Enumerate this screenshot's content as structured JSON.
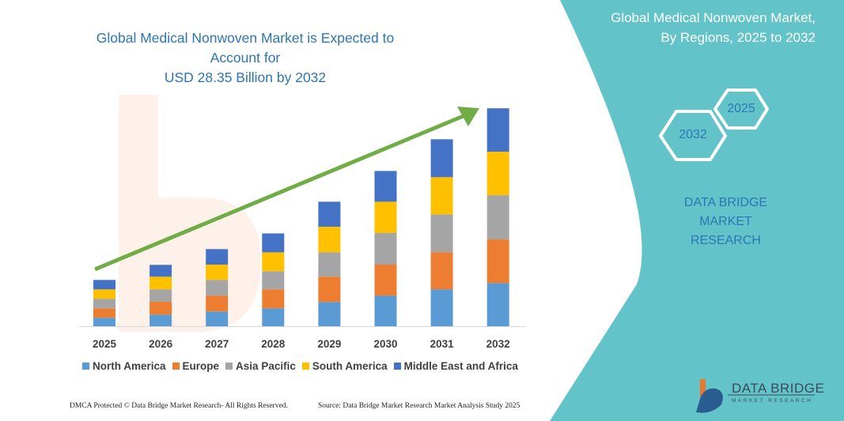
{
  "header": {
    "title_line1": "Global Medical Nonwoven Market is Expected to Account for",
    "title_line2": "USD 28.35 Billion by 2032"
  },
  "side_panel": {
    "title_line1": "Global Medical Nonwoven Market,",
    "title_line2": "By Regions, 2025 to 2032",
    "hex_start": "2025",
    "hex_end": "2032",
    "brand_line1": "DATA BRIDGE MARKET",
    "brand_line2": "RESEARCH",
    "panel_color": "#62c4c9"
  },
  "footer": {
    "left": "DMCA Protected © Data Bridge Market Research- All Rights Reserved.",
    "right": "Source: Data Bridge Market Research  Market Analysis Study 2025"
  },
  "logo": {
    "name": "DATA BRIDGE",
    "sub": "MARKET RESEARCH"
  },
  "chart_data": {
    "type": "bar",
    "stacked": true,
    "title": "Global Medical Nonwoven Market is Expected to Account for USD 28.35 Billion by 2032",
    "xlabel": "",
    "ylabel": "",
    "ylim": [
      0,
      28.35
    ],
    "grid": false,
    "y_axis_shown": false,
    "legend_position": "bottom",
    "trend_arrow": true,
    "categories": [
      "2025",
      "2026",
      "2027",
      "2028",
      "2029",
      "2030",
      "2031",
      "2032"
    ],
    "series": [
      {
        "name": "North America",
        "color": "#5b9bd5",
        "values": [
          1.1,
          1.51,
          1.92,
          2.33,
          3.15,
          3.97,
          4.79,
          5.61
        ]
      },
      {
        "name": "Europe",
        "color": "#ed7d31",
        "values": [
          1.23,
          1.68,
          2.05,
          2.46,
          3.29,
          4.04,
          4.83,
          5.68
        ]
      },
      {
        "name": "Asia Pacific",
        "color": "#a5a5a5",
        "values": [
          1.23,
          1.61,
          2.05,
          2.36,
          3.18,
          4.11,
          4.93,
          5.75
        ]
      },
      {
        "name": "South America",
        "color": "#ffc000",
        "values": [
          1.23,
          1.64,
          1.99,
          2.46,
          3.32,
          4.07,
          4.83,
          5.65
        ]
      },
      {
        "name": "Middle East and Africa",
        "color": "#4472c4",
        "values": [
          1.23,
          1.54,
          2.02,
          2.46,
          3.25,
          4.0,
          4.93,
          5.65
        ]
      }
    ]
  }
}
